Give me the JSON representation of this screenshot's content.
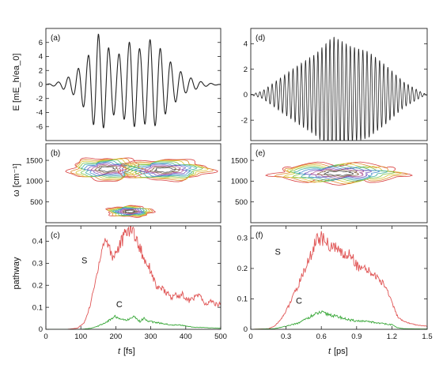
{
  "figure": {
    "ylabel_top": "E [mE_h/ea_0]",
    "ylabel_mid": "ω [cm⁻¹]",
    "ylabel_bottom": "pathway",
    "xlabel_left_prefix": "t",
    "xlabel_left_unit": "[fs]",
    "xlabel_right_prefix": "t",
    "xlabel_right_unit": "[ps]"
  },
  "colors": {
    "field": "#222222",
    "S": "#e05555",
    "C": "#3aa83a",
    "contours": [
      "#d94141",
      "#e08a30",
      "#d9c93a",
      "#7cc44a",
      "#3fb0a0",
      "#4a8fd0",
      "#7a5fc0",
      "#b05a9a",
      "#8a6a4a",
      "#555555"
    ]
  },
  "chart_data": [
    {
      "panel": "(a)",
      "type": "line",
      "xlim": [
        0,
        500
      ],
      "ylim": [
        -8,
        8
      ],
      "yticks": [
        -6,
        -4,
        -2,
        0,
        2,
        4,
        6
      ],
      "xticks": [],
      "ylabel": "E [mE_h/ea_0]",
      "series": [
        {
          "values_desc": "oscillating field",
          "envelope": [
            [
              0,
              0
            ],
            [
              40,
              0.4
            ],
            [
              80,
              1.5
            ],
            [
              120,
              4
            ],
            [
              150,
              7.2
            ],
            [
              175,
              5.5
            ],
            [
              200,
              4
            ],
            [
              225,
              5
            ],
            [
              245,
              6.5
            ],
            [
              270,
              5
            ],
            [
              300,
              6.5
            ],
            [
              330,
              5
            ],
            [
              360,
              3
            ],
            [
              400,
              1.2
            ],
            [
              450,
              0.3
            ],
            [
              500,
              0
            ]
          ],
          "period": 29
        }
      ]
    },
    {
      "panel": "(b)",
      "type": "heatmap",
      "xlim": [
        0,
        500
      ],
      "ylim": [
        0,
        1900
      ],
      "yticks": [
        500,
        1000,
        1500
      ],
      "xticks": [],
      "ylabel": "ω [cm⁻¹]",
      "blobs": [
        {
          "cx": 175,
          "cy": 1290,
          "rx": 105,
          "ry": 270
        },
        {
          "cx": 340,
          "cy": 1270,
          "rx": 130,
          "ry": 250
        },
        {
          "cx": 240,
          "cy": 270,
          "rx": 65,
          "ry": 130
        }
      ]
    },
    {
      "panel": "(c)",
      "type": "line",
      "xlim": [
        0,
        500
      ],
      "ylim": [
        0,
        0.47
      ],
      "yticks": [
        0,
        0.1,
        0.2,
        0.3,
        0.4
      ],
      "xticks": [
        0,
        100,
        200,
        300,
        400,
        500
      ],
      "ylabel": "pathway",
      "annotations": [
        {
          "text": "S",
          "x": 110,
          "y": 0.3
        },
        {
          "text": "C",
          "x": 210,
          "y": 0.1
        }
      ],
      "series": [
        {
          "name": "S",
          "x": [
            0,
            60,
            90,
            110,
            125,
            140,
            150,
            160,
            170,
            180,
            190,
            200,
            210,
            220,
            230,
            240,
            250,
            260,
            270,
            280,
            290,
            300,
            310,
            320,
            330,
            340,
            350,
            360,
            370,
            380,
            390,
            400,
            410,
            420,
            430,
            440,
            450,
            460,
            470,
            480,
            490,
            500
          ],
          "values": [
            0,
            0,
            0.005,
            0.03,
            0.1,
            0.2,
            0.29,
            0.36,
            0.41,
            0.38,
            0.33,
            0.35,
            0.38,
            0.41,
            0.44,
            0.46,
            0.45,
            0.4,
            0.37,
            0.32,
            0.3,
            0.27,
            0.22,
            0.18,
            0.19,
            0.17,
            0.16,
            0.14,
            0.16,
            0.15,
            0.16,
            0.14,
            0.13,
            0.14,
            0.15,
            0.16,
            0.12,
            0.11,
            0.13,
            0.12,
            0.11,
            0.12
          ]
        },
        {
          "name": "C",
          "x": [
            0,
            100,
            130,
            150,
            170,
            190,
            200,
            210,
            220,
            230,
            240,
            250,
            260,
            270,
            280,
            290,
            300,
            320,
            340,
            360,
            380,
            400,
            420,
            450,
            500
          ],
          "values": [
            0,
            0,
            0.005,
            0.015,
            0.03,
            0.05,
            0.06,
            0.045,
            0.05,
            0.04,
            0.05,
            0.06,
            0.045,
            0.035,
            0.05,
            0.04,
            0.035,
            0.03,
            0.025,
            0.02,
            0.02,
            0.015,
            0.01,
            0.008,
            0.005
          ]
        }
      ]
    },
    {
      "panel": "(d)",
      "type": "line",
      "xlim": [
        0,
        1.5
      ],
      "ylim": [
        -3.6,
        5.2
      ],
      "yticks": [
        -2,
        0,
        2,
        4
      ],
      "xticks": [],
      "series": [
        {
          "values_desc": "oscillating field",
          "envelope": [
            [
              0,
              0
            ],
            [
              0.1,
              0.3
            ],
            [
              0.25,
              1.3
            ],
            [
              0.4,
              2.3
            ],
            [
              0.55,
              3.2
            ],
            [
              0.7,
              4.6
            ],
            [
              0.85,
              3.8
            ],
            [
              1.0,
              3.4
            ],
            [
              1.15,
              2.3
            ],
            [
              1.3,
              1.0
            ],
            [
              1.45,
              0.2
            ],
            [
              1.5,
              0
            ]
          ],
          "period": 0.035
        }
      ]
    },
    {
      "panel": "(e)",
      "type": "heatmap",
      "xlim": [
        0,
        1.5
      ],
      "ylim": [
        0,
        1900
      ],
      "yticks": [
        500,
        1000,
        1500
      ],
      "xticks": [],
      "blobs": [
        {
          "cx": 0.75,
          "cy": 1190,
          "rx": 0.55,
          "ry": 230
        }
      ]
    },
    {
      "panel": "(f)",
      "type": "line",
      "xlim": [
        0,
        1.5
      ],
      "ylim": [
        0,
        0.34
      ],
      "yticks": [
        0,
        0.1,
        0.2,
        0.3
      ],
      "xticks": [
        0,
        0.3,
        0.6,
        0.9,
        1.2,
        1.5
      ],
      "annotations": [
        {
          "text": "S",
          "x": 0.23,
          "y": 0.245
        },
        {
          "text": "C",
          "x": 0.41,
          "y": 0.085
        }
      ],
      "series": [
        {
          "name": "S",
          "x": [
            0,
            0.15,
            0.2,
            0.25,
            0.3,
            0.35,
            0.4,
            0.45,
            0.5,
            0.55,
            0.6,
            0.65,
            0.7,
            0.75,
            0.8,
            0.85,
            0.9,
            0.95,
            1.0,
            1.05,
            1.1,
            1.15,
            1.2,
            1.25,
            1.3,
            1.35,
            1.4,
            1.45,
            1.5
          ],
          "values": [
            0,
            0.002,
            0.01,
            0.03,
            0.06,
            0.1,
            0.14,
            0.19,
            0.23,
            0.29,
            0.3,
            0.28,
            0.27,
            0.26,
            0.24,
            0.25,
            0.21,
            0.2,
            0.19,
            0.18,
            0.16,
            0.14,
            0.09,
            0.04,
            0.025,
            0.02,
            0.015,
            0.012,
            0.01
          ]
        },
        {
          "name": "C",
          "x": [
            0,
            0.2,
            0.3,
            0.4,
            0.5,
            0.55,
            0.6,
            0.65,
            0.7,
            0.75,
            0.8,
            0.85,
            0.9,
            1.0,
            1.1,
            1.2,
            1.25,
            1.3,
            1.5
          ],
          "values": [
            0,
            0.002,
            0.01,
            0.02,
            0.04,
            0.05,
            0.055,
            0.05,
            0.045,
            0.04,
            0.035,
            0.03,
            0.028,
            0.025,
            0.02,
            0.015,
            0.005,
            0.002,
            0.001
          ]
        }
      ]
    }
  ]
}
